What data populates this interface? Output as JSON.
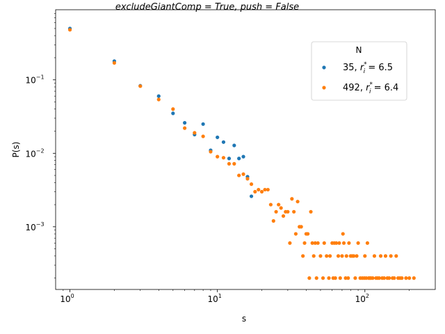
{
  "chart_data": {
    "type": "scatter",
    "title": "excludeGiantComp = True, push = False",
    "xlabel": "s",
    "ylabel": "P(s)",
    "xscale": "log",
    "yscale": "log",
    "xlim": [
      0.8,
      300
    ],
    "ylim": [
      0.00014,
      0.9
    ],
    "grid": false,
    "legend": {
      "title": "N",
      "location": "upper right",
      "entries": [
        {
          "label_main": "35, ",
          "label_r": "r",
          "label_sub": "i",
          "label_sup": "*",
          "label_value": " = 6.5"
        },
        {
          "label_main": "492, ",
          "label_r": "r",
          "label_sub": "i",
          "label_sup": "*",
          "label_value": " = 6.4"
        }
      ]
    },
    "x_ticks": [
      {
        "value": 1,
        "base": "10",
        "exp": "0"
      },
      {
        "value": 10,
        "base": "10",
        "exp": "1"
      },
      {
        "value": 100,
        "base": "10",
        "exp": "2"
      }
    ],
    "y_ticks": [
      {
        "value": 0.001,
        "base": "10",
        "exp": "−3"
      },
      {
        "value": 0.01,
        "base": "10",
        "exp": "−2"
      },
      {
        "value": 0.1,
        "base": "10",
        "exp": "−1"
      }
    ],
    "series": [
      {
        "name": "35",
        "color": "#1f77b4",
        "points": [
          [
            1,
            0.5
          ],
          [
            2,
            0.18
          ],
          [
            3,
            0.083
          ],
          [
            4,
            0.06
          ],
          [
            5,
            0.035
          ],
          [
            6,
            0.026
          ],
          [
            7,
            0.018
          ],
          [
            8,
            0.025
          ],
          [
            9,
            0.011
          ],
          [
            10,
            0.0165
          ],
          [
            11,
            0.0142
          ],
          [
            12,
            0.0085
          ],
          [
            13,
            0.0128
          ],
          [
            14,
            0.0085
          ],
          [
            15,
            0.009
          ],
          [
            16,
            0.0048
          ],
          [
            17,
            0.0026
          ]
        ]
      },
      {
        "name": "492",
        "color": "#ff7f0e",
        "points": [
          [
            1,
            0.48
          ],
          [
            2,
            0.17
          ],
          [
            3,
            0.082
          ],
          [
            4,
            0.054
          ],
          [
            5,
            0.04
          ],
          [
            6,
            0.022
          ],
          [
            7,
            0.019
          ],
          [
            8,
            0.017
          ],
          [
            9,
            0.0105
          ],
          [
            10,
            0.009
          ],
          [
            11,
            0.0087
          ],
          [
            12,
            0.0072
          ],
          [
            13,
            0.0072
          ],
          [
            14,
            0.005
          ],
          [
            15,
            0.0052
          ],
          [
            16,
            0.0045
          ],
          [
            17,
            0.0038
          ],
          [
            18,
            0.003
          ],
          [
            19,
            0.0032
          ],
          [
            20,
            0.003
          ],
          [
            21,
            0.0032
          ],
          [
            22,
            0.0032
          ],
          [
            23,
            0.002
          ],
          [
            24,
            0.0012
          ],
          [
            25,
            0.0016
          ],
          [
            26,
            0.002
          ],
          [
            27,
            0.0018
          ],
          [
            28,
            0.0014
          ],
          [
            29,
            0.0016
          ],
          [
            30,
            0.0016
          ],
          [
            31,
            0.0006
          ],
          [
            32,
            0.0024
          ],
          [
            33,
            0.0016
          ],
          [
            34,
            0.0008
          ],
          [
            35,
            0.0022
          ],
          [
            36,
            0.001
          ],
          [
            37,
            0.001
          ],
          [
            38,
            0.0004
          ],
          [
            39,
            0.0006
          ],
          [
            40,
            0.0008
          ],
          [
            41,
            0.0008
          ],
          [
            42,
            0.0002
          ],
          [
            43,
            0.0016
          ],
          [
            44,
            0.0006
          ],
          [
            45,
            0.0004
          ],
          [
            46,
            0.0006
          ],
          [
            47,
            0.0002
          ],
          [
            48,
            0.0006
          ],
          [
            50,
            0.0004
          ],
          [
            52,
            0.0002
          ],
          [
            53,
            0.0006
          ],
          [
            55,
            0.0004
          ],
          [
            57,
            0.0002
          ],
          [
            58,
            0.0004
          ],
          [
            60,
            0.0006
          ],
          [
            61,
            0.0002
          ],
          [
            62,
            0.0006
          ],
          [
            63,
            0.0002
          ],
          [
            64,
            0.0006
          ],
          [
            66,
            0.0004
          ],
          [
            67,
            0.0006
          ],
          [
            68,
            0.0002
          ],
          [
            70,
            0.0004
          ],
          [
            71,
            0.0008
          ],
          [
            72,
            0.0006
          ],
          [
            74,
            0.0002
          ],
          [
            75,
            0.0004
          ],
          [
            77,
            0.0002
          ],
          [
            78,
            0.0006
          ],
          [
            80,
            0.0004
          ],
          [
            82,
            0.0004
          ],
          [
            84,
            0.0004
          ],
          [
            86,
            0.0002
          ],
          [
            88,
            0.0004
          ],
          [
            90,
            0.0006
          ],
          [
            93,
            0.0002
          ],
          [
            96,
            0.0002
          ],
          [
            99,
            0.0002
          ],
          [
            100,
            0.0004
          ],
          [
            102,
            0.0002
          ],
          [
            104,
            0.0006
          ],
          [
            106,
            0.0002
          ],
          [
            108,
            0.0002
          ],
          [
            110,
            0.0002
          ],
          [
            113,
            0.0002
          ],
          [
            116,
            0.0004
          ],
          [
            119,
            0.0002
          ],
          [
            122,
            0.0002
          ],
          [
            125,
            0.0002
          ],
          [
            128,
            0.0004
          ],
          [
            131,
            0.0002
          ],
          [
            135,
            0.0002
          ],
          [
            138,
            0.0004
          ],
          [
            142,
            0.0002
          ],
          [
            146,
            0.0002
          ],
          [
            150,
            0.0004
          ],
          [
            154,
            0.0002
          ],
          [
            158,
            0.0002
          ],
          [
            163,
            0.0004
          ],
          [
            168,
            0.0002
          ],
          [
            173,
            0.0002
          ],
          [
            178,
            0.0002
          ],
          [
            190,
            0.0002
          ],
          [
            200,
            0.0002
          ],
          [
            215,
            0.0002
          ]
        ]
      }
    ]
  }
}
